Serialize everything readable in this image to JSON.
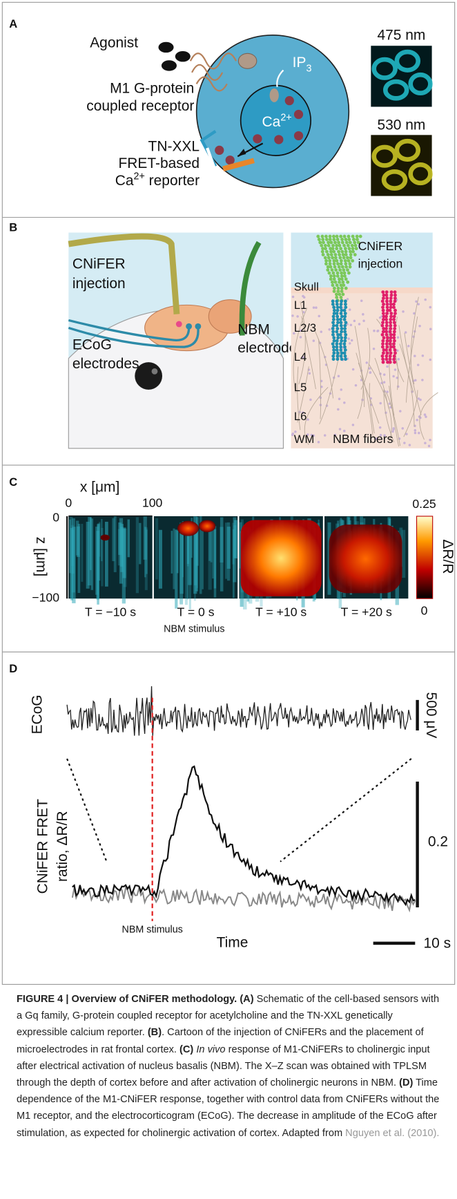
{
  "panels": {
    "a": {
      "label": "A",
      "agonist": "Agonist",
      "receptor": [
        "M1 G-protein",
        "coupled receptor"
      ],
      "ip3": {
        "base": "IP",
        "sub": "3"
      },
      "ca": {
        "base": "Ca",
        "sup": "2+"
      },
      "reporter": [
        "TN-XXL",
        "FRET-based"
      ],
      "reporter_last": {
        "base": "Ca",
        "sup": "2+",
        "rest": " reporter"
      },
      "wavelength_1": "475 nm",
      "wavelength_2": "530 nm"
    },
    "b": {
      "label": "B",
      "injection": [
        "CNiFER",
        "injection"
      ],
      "ecog": [
        "ECoG",
        "electrodes"
      ],
      "nbm": [
        "NBM",
        "electrode"
      ],
      "right_injection": [
        "CNiFER",
        "injection"
      ],
      "layers": [
        "Skull",
        "L1",
        "L2/3",
        "L4",
        "L5",
        "L6",
        "WM"
      ],
      "fibers": "NBM fibers"
    },
    "c": {
      "label": "C",
      "x_axis": "x [μm]",
      "x_ticks": [
        "0",
        "100"
      ],
      "z_axis": "z [μm]",
      "z_ticks": [
        "0",
        "−100"
      ],
      "times": [
        "T = −10 s",
        "T = 0 s",
        "T = +10 s",
        "T = +20 s"
      ],
      "stimulus": "NBM stimulus",
      "colorbar_max": "0.25",
      "colorbar_min": "0",
      "colorbar_label": "ΔR/R"
    },
    "d": {
      "label": "D",
      "ecog": "ECoG",
      "ecog_scale": "500 μV",
      "fret": [
        "CNiFER FRET",
        "ratio, ΔR/R"
      ],
      "fret_scale": "0.2",
      "stimulus": "NBM stimulus",
      "time": "Time",
      "time_scale": "10 s"
    }
  },
  "caption": {
    "title": "FIGURE 4 | Overview of CNiFER methodology.",
    "a_label": "(A)",
    "a_text": " Schematic of the cell-based sensors with a Gq family, G-protein coupled receptor for acetylcholine and the TN-XXL genetically expressible calcium reporter.",
    "b_label": "(B)",
    "b_text": ". Cartoon of the injection of CNiFERs and the placement of microelectrodes in rat frontal cortex.",
    "c_label": "(C)",
    "c_italic": "In vivo",
    "c_text": " response of M1-CNiFERs to cholinergic input after electrical activation of nucleus basalis (NBM). The X–Z scan was obtained with TPLSM through the depth of cortex before and after activation of cholinergic neurons in NBM.",
    "d_label": "(D)",
    "d_text": " Time dependence of the M1-CNiFER response, together with control data from CNiFERs without the M1 receptor, and the electrocorticogram (ECoG). The decrease in amplitude of the ECoG after stimulation, as expected for cholinergic activation of cortex. Adapted from ",
    "reference": "Nguyen et al. (2010)."
  }
}
